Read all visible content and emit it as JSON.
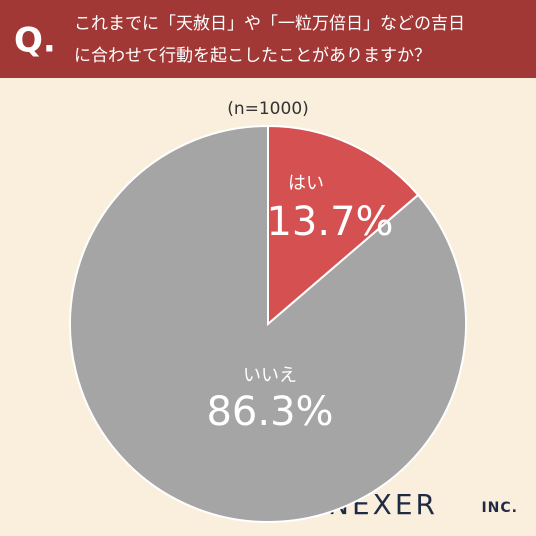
{
  "chart_data": {
    "type": "pie",
    "title_mark": "Q.",
    "title": [
      "これまでに「天赦日」や「一粒万倍日」などの吉日",
      "に合わせて行動を起こしたことがありますか？"
    ],
    "subtitle": "(n=1000)",
    "categories": [
      "はい",
      "いいえ"
    ],
    "values": [
      13.7,
      86.3
    ],
    "value_labels": [
      "13.7%",
      "86.3%"
    ],
    "colors": [
      "#d55050",
      "#a5a5a5"
    ]
  },
  "brand": {
    "name": "NEXER",
    "suffix": "INC."
  }
}
